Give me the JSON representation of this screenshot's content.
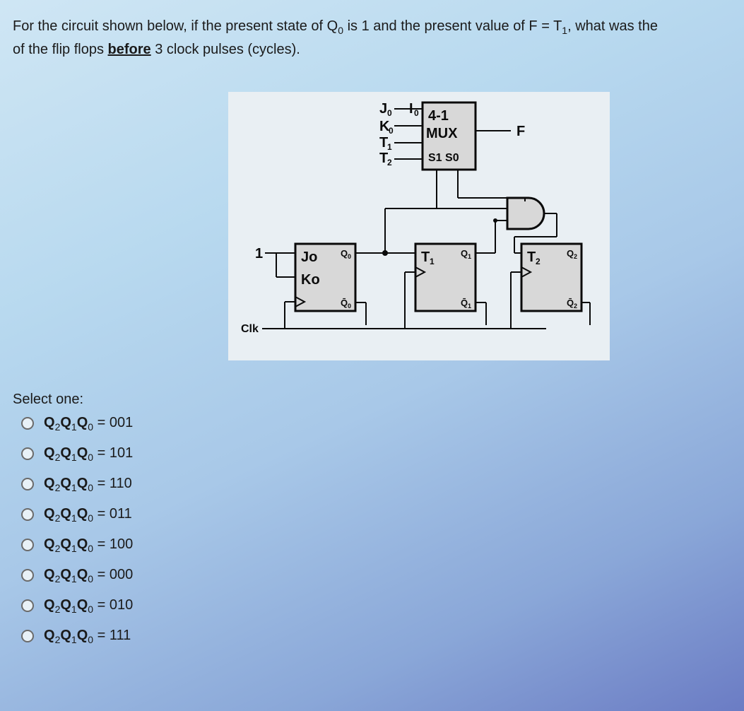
{
  "question": {
    "line1_pre": "For the circuit shown below, if the present state of Q",
    "q0_sub": "0",
    "line1_mid": " is 1 and the present value of F = T",
    "t1_sub": "1",
    "line1_post": ", what was the",
    "line2_pre": "of the flip flops ",
    "underlined": "before",
    "line2_post": " 3 clock pulses (cycles)."
  },
  "diagram": {
    "bg_color": "#e9eff3",
    "box_fill": "#d8d8d8",
    "stroke": "#0a0a0a",
    "mux": {
      "inputs": [
        "J",
        "K",
        "T",
        "T"
      ],
      "input_subs": [
        "0",
        "0",
        "1",
        "2"
      ],
      "i0": "I",
      "i0_sub": "0",
      "title1": "4-1",
      "title2": "MUX",
      "sel": "S1 S0",
      "out": "F"
    },
    "one_label": "1",
    "clk_label": "Clk",
    "ff0": {
      "top": "Jo",
      "bot": "Ko",
      "q": "Q",
      "q_sub": "0",
      "qb": "Q",
      "qb_sub": "0"
    },
    "ff1": {
      "top": "T",
      "top_sub": "1",
      "q": "Q",
      "q_sub": "1",
      "qb": "Q",
      "qb_sub": "1"
    },
    "ff2": {
      "top": "T",
      "top_sub": "2",
      "q": "Q",
      "q_sub": "2",
      "qb": "Q",
      "qb_sub": "2"
    }
  },
  "answers": {
    "select_label": "Select one:",
    "prefix_q2": "Q",
    "sub2": "2",
    "prefix_q1": "Q",
    "sub1": "1",
    "prefix_q0": "Q",
    "sub0": "0",
    "eq": " = ",
    "options": [
      "001",
      "101",
      "110",
      "011",
      "100",
      "000",
      "010",
      "111"
    ]
  },
  "colors": {
    "text": "#1a1a1a",
    "radio_border": "#6b6b6b"
  }
}
